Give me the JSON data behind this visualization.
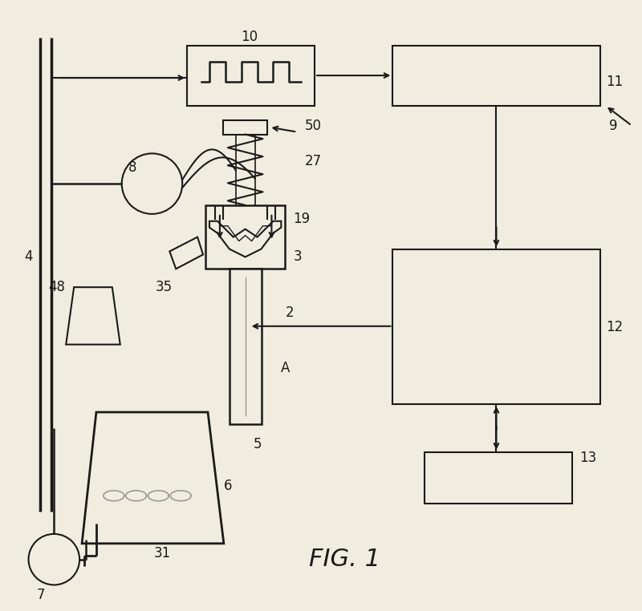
{
  "bg_color": "#f0ede0",
  "line_color": "#1a1a1a",
  "fig_title": "FIG. 1"
}
